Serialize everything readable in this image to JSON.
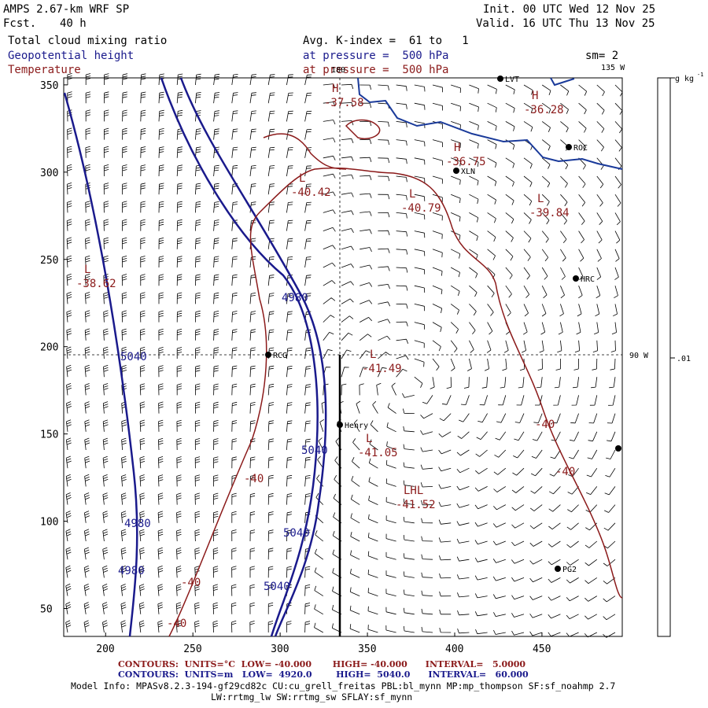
{
  "header": {
    "model": "AMPS 2.67-km WRF SP",
    "forecast_label": "Fcst.",
    "forecast_hours": "40 h",
    "init": "Init. 00 UTC Wed 12 Nov 25",
    "valid": "Valid. 16 UTC Thu 13 Nov 25",
    "field1": "Total cloud mixing ratio",
    "field2": "Geopotential height",
    "field3": "Temperature",
    "avg_line": "Avg. K-index =  61 to   1",
    "pressure_line1": "at pressure =  500 hPa",
    "pressure_line2": "at pressure =  500 hPa",
    "smoothing": "sm= 2"
  },
  "colors": {
    "height": "#1a1a8c",
    "temperature": "#8b1a1a",
    "coast": "#1a3a9a",
    "barb": "#000000"
  },
  "map": {
    "x_ticks": [
      "200",
      "250",
      "300",
      "350",
      "400",
      "450"
    ],
    "y_ticks": [
      "350",
      "300",
      "250",
      "200",
      "150",
      "100",
      "50"
    ],
    "lon_labels": {
      "top": "180",
      "top_right": "135 W",
      "right": "90 W"
    },
    "stations": [
      "LVT",
      "ROC",
      "XLN",
      "HRC",
      "RCG",
      "Henry",
      "PG2"
    ],
    "height_labels": [
      "4980",
      "5040",
      "5040",
      "4980",
      "5040",
      "4980",
      "5040",
      "4980"
    ],
    "temp_labels": [
      "-40",
      "-40",
      "-40",
      "-40",
      "-40"
    ],
    "extrema": [
      {
        "letter": "H",
        "value": "-37.58"
      },
      {
        "letter": "H",
        "value": "-36.28"
      },
      {
        "letter": "H",
        "value": "-36.75"
      },
      {
        "letter": "L",
        "value": "-40.42"
      },
      {
        "letter": "L",
        "value": "-40.79"
      },
      {
        "letter": "L",
        "value": "-39.84"
      },
      {
        "letter": "L",
        "value": "-38.62"
      },
      {
        "letter": "L",
        "value": "-41.49"
      },
      {
        "letter": "L",
        "value": "-41.05"
      },
      {
        "letter": "LHL",
        "value": "-41.52"
      }
    ]
  },
  "colorbar": {
    "units": "g kg",
    "units_exp": "-1",
    "tick": ".01"
  },
  "footer": {
    "temp_contours": "CONTOURS:  UNITS=°C  LOW= -40.000       HIGH= -40.000      INTERVAL=   5.0000",
    "height_contours": "CONTOURS:  UNITS=m   LOW=  4920.0        HIGH=  5040.0      INTERVAL=   60.000",
    "model_info1": "Model Info: MPASv8.2.3-194-gf29cd82c CU:cu_grell_freitas PBL:bl_mynn MP:mp_thompson SF:sf_noahmp 2.7",
    "model_info2": "LW:rrtmg_lw SW:rrtmg_sw SFLAY:sf_mynn"
  }
}
